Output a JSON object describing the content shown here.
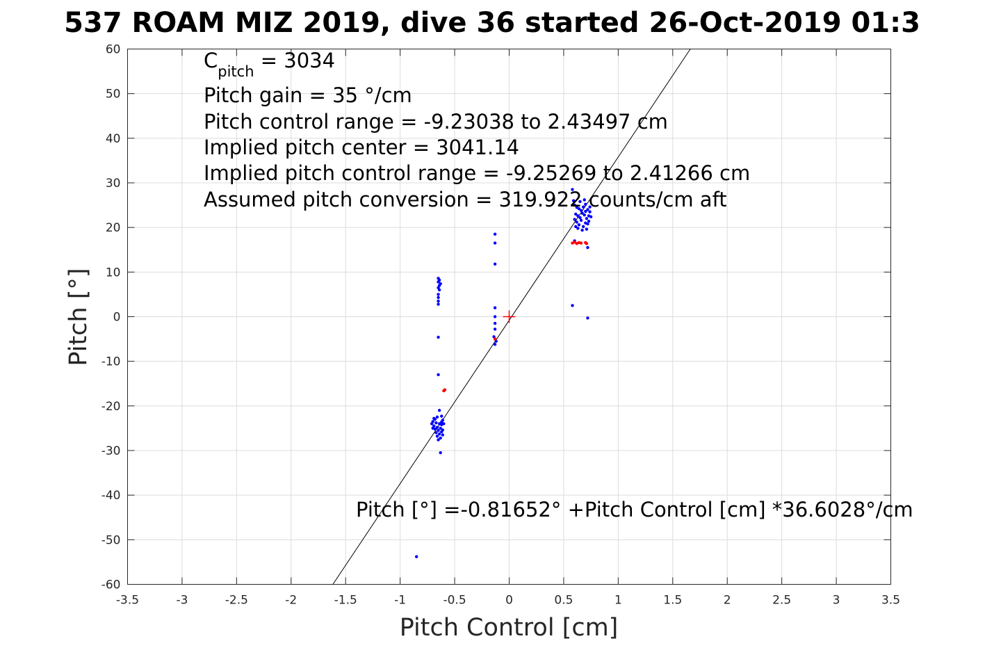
{
  "chart_data": {
    "type": "scatter",
    "title": "537 ROAM MIZ 2019, dive 36 started 26-Oct-2019 01:3",
    "xlabel": "Pitch Control [cm]",
    "ylabel": "Pitch [°]",
    "xlim": [
      -3.5,
      3.5
    ],
    "ylim": [
      -60,
      60
    ],
    "xticks": [
      -3.5,
      -3,
      -2.5,
      -2,
      -1.5,
      -1,
      -0.5,
      0,
      0.5,
      1,
      1.5,
      2,
      2.5,
      3,
      3.5
    ],
    "xtick_labels": [
      "-3.5",
      "-3",
      "-2.5",
      "-2",
      "-1.5",
      "-1",
      "-0.5",
      "0",
      "0.5",
      "1",
      "1.5",
      "2",
      "2.5",
      "3",
      "3.5"
    ],
    "yticks": [
      60,
      50,
      40,
      30,
      20,
      10,
      0,
      -10,
      -20,
      -30,
      -40,
      -50,
      -60
    ],
    "ytick_labels": [
      "60",
      "50",
      "40",
      "30",
      "20",
      "10",
      "0",
      "-10",
      "-20",
      "-30",
      "-40",
      "-50",
      "-60"
    ],
    "grid": true,
    "annotations": {
      "cpitch_main": "C",
      "cpitch_sub": "pitch",
      "cpitch_value": " = 3034",
      "pitch_gain": "Pitch gain = 35 °/cm",
      "pitch_control_range": "Pitch control range = -9.23038 to 2.43497 cm",
      "implied_center": "Implied pitch center = 3041.14",
      "implied_range": "Implied pitch control range = -9.25269 to 2.41266 cm",
      "assumed_conversion": "Assumed pitch conversion = 319.922 counts/cm aft",
      "fit_equation": "Pitch [°] =-0.81652° +Pitch Control [cm] *36.6028°/cm"
    },
    "fit_line": {
      "intercept": -0.81652,
      "slope": 36.6028,
      "color": "#000000"
    },
    "center_marker": {
      "x": 0,
      "y": 0,
      "color": "#ff0000",
      "marker": "plus"
    },
    "series": [
      {
        "color": "#0000ff",
        "points": [
          [
            -0.65,
            8.6
          ],
          [
            -0.64,
            8.2
          ],
          [
            -0.65,
            7.8
          ],
          [
            -0.63,
            7.4
          ],
          [
            -0.64,
            7.0
          ],
          [
            -0.65,
            6.5
          ],
          [
            -0.64,
            6.0
          ],
          [
            -0.65,
            5.0
          ],
          [
            -0.65,
            4.3
          ],
          [
            -0.65,
            3.5
          ],
          [
            -0.65,
            2.8
          ],
          [
            -0.65,
            -4.6
          ],
          [
            -0.65,
            -13.0
          ],
          [
            -0.64,
            -21.0
          ],
          [
            -0.66,
            -22.5
          ],
          [
            -0.62,
            -22.3
          ],
          [
            -0.68,
            -23.0
          ],
          [
            -0.61,
            -23.2
          ],
          [
            -0.7,
            -23.5
          ],
          [
            -0.67,
            -23.8
          ],
          [
            -0.64,
            -24.0
          ],
          [
            -0.62,
            -24.2
          ],
          [
            -0.69,
            -24.5
          ],
          [
            -0.66,
            -24.8
          ],
          [
            -0.63,
            -25.0
          ],
          [
            -0.6,
            -24.0
          ],
          [
            -0.71,
            -24.0
          ],
          [
            -0.68,
            -25.2
          ],
          [
            -0.65,
            -25.5
          ],
          [
            -0.62,
            -25.8
          ],
          [
            -0.67,
            -26.0
          ],
          [
            -0.64,
            -26.3
          ],
          [
            -0.61,
            -26.5
          ],
          [
            -0.66,
            -26.8
          ],
          [
            -0.63,
            -27.2
          ],
          [
            -0.65,
            -27.6
          ],
          [
            -0.62,
            -23.6
          ],
          [
            -0.69,
            -22.8
          ],
          [
            -0.61,
            -25.4
          ],
          [
            -0.7,
            -25.0
          ],
          [
            -0.63,
            -30.5
          ],
          [
            -0.13,
            18.5
          ],
          [
            -0.13,
            16.5
          ],
          [
            -0.13,
            11.8
          ],
          [
            -0.13,
            2.0
          ],
          [
            -0.13,
            0.0
          ],
          [
            -0.13,
            -1.5
          ],
          [
            -0.13,
            -2.8
          ],
          [
            -0.14,
            -4.5
          ],
          [
            -0.12,
            -5.5
          ],
          [
            -0.13,
            -6.2
          ],
          [
            0.58,
            28.5
          ],
          [
            0.59,
            26.0
          ],
          [
            0.6,
            25.0
          ],
          [
            0.62,
            24.5
          ],
          [
            0.64,
            24.2
          ],
          [
            0.66,
            23.8
          ],
          [
            0.68,
            24.6
          ],
          [
            0.7,
            25.2
          ],
          [
            0.72,
            24.0
          ],
          [
            0.74,
            23.5
          ],
          [
            0.61,
            23.0
          ],
          [
            0.63,
            22.6
          ],
          [
            0.65,
            22.2
          ],
          [
            0.67,
            23.2
          ],
          [
            0.69,
            22.8
          ],
          [
            0.71,
            22.0
          ],
          [
            0.73,
            22.6
          ],
          [
            0.6,
            21.8
          ],
          [
            0.62,
            21.2
          ],
          [
            0.64,
            20.6
          ],
          [
            0.66,
            21.6
          ],
          [
            0.68,
            20.2
          ],
          [
            0.7,
            21.0
          ],
          [
            0.72,
            20.8
          ],
          [
            0.63,
            19.8
          ],
          [
            0.67,
            19.4
          ],
          [
            0.71,
            19.6
          ],
          [
            0.74,
            24.6
          ],
          [
            0.69,
            26.2
          ],
          [
            0.65,
            25.8
          ],
          [
            0.73,
            21.4
          ],
          [
            0.61,
            20.2
          ],
          [
            0.7,
            23.6
          ],
          [
            0.75,
            22.4
          ],
          [
            0.6,
            17.0
          ],
          [
            0.72,
            15.5
          ],
          [
            0.58,
            2.5
          ],
          [
            0.72,
            -0.3
          ],
          [
            -0.85,
            -53.8
          ]
        ]
      },
      {
        "color": "#ff0000",
        "points": [
          [
            -0.6,
            -16.6
          ],
          [
            -0.59,
            -16.4
          ],
          [
            -0.13,
            -5.0
          ],
          [
            0.58,
            16.5
          ],
          [
            0.6,
            16.7
          ],
          [
            0.62,
            16.4
          ],
          [
            0.64,
            16.6
          ],
          [
            0.66,
            16.5
          ],
          [
            0.7,
            16.6
          ],
          [
            0.71,
            16.4
          ]
        ]
      }
    ]
  }
}
